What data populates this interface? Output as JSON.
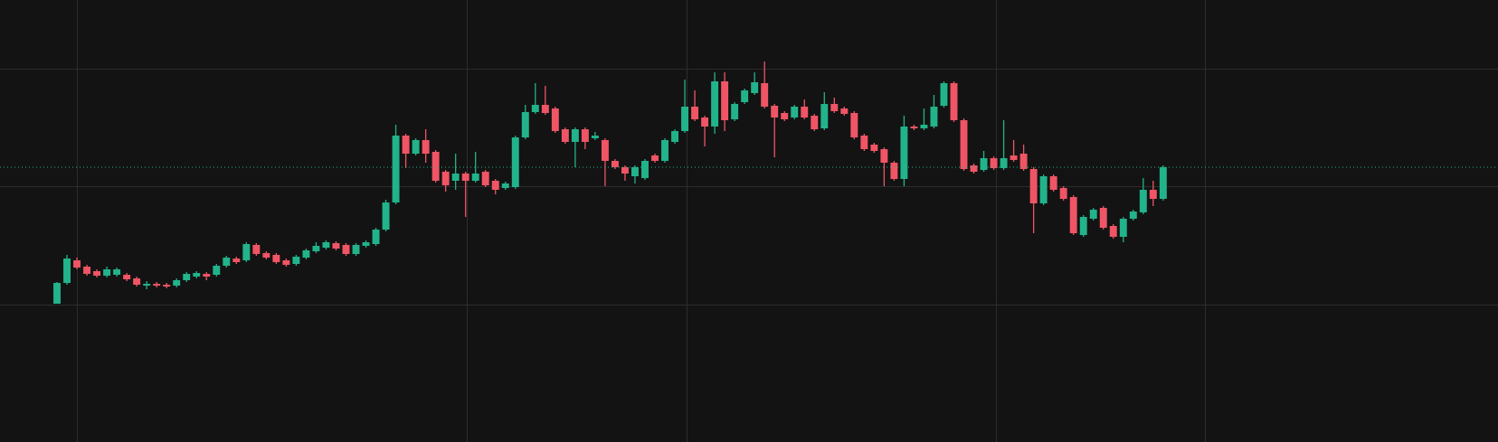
{
  "chart_data": {
    "type": "candlestick",
    "open": [
      153,
      176,
      201,
      194,
      189,
      184,
      185,
      185,
      181,
      173,
      175,
      174,
      173,
      179,
      183,
      186,
      185,
      195,
      203,
      201,
      218,
      209,
      207,
      201,
      197,
      204,
      211,
      215,
      220,
      218,
      208,
      217,
      219,
      235,
      265,
      339,
      319,
      334,
      321,
      299,
      289,
      297,
      289,
      299,
      289,
      281,
      282,
      337,
      365,
      373,
      369,
      346,
      332,
      346,
      336,
      334,
      311,
      304,
      294,
      292,
      317,
      311,
      332,
      344,
      371,
      359,
      349,
      399,
      357,
      376,
      386,
      397,
      372,
      364,
      359,
      371,
      361,
      347,
      374,
      369,
      364,
      339,
      329,
      324,
      309,
      291,
      349,
      347,
      349,
      372,
      397,
      356,
      306,
      301,
      314,
      303,
      317,
      319,
      302,
      264,
      294,
      281,
      271,
      229,
      247,
      259,
      239,
      227,
      247,
      254,
      279,
      269
    ],
    "high": [
      177,
      207,
      204,
      196,
      191,
      194,
      193,
      187,
      183,
      178,
      177,
      176,
      181,
      188,
      189,
      188,
      197,
      206,
      205,
      221,
      220,
      211,
      209,
      203,
      207,
      214,
      221,
      223,
      222,
      220,
      220,
      223,
      237,
      268,
      351,
      341,
      336,
      346,
      323,
      301,
      319,
      299,
      321,
      301,
      291,
      288,
      339,
      373,
      397,
      394,
      371,
      348,
      348,
      348,
      343,
      336,
      313,
      306,
      306,
      313,
      319,
      336,
      346,
      401,
      389,
      361,
      409,
      409,
      376,
      391,
      409,
      421,
      374,
      366,
      373,
      379,
      363,
      387,
      381,
      371,
      366,
      341,
      331,
      326,
      311,
      361,
      351,
      369,
      384,
      399,
      399,
      358,
      308,
      322,
      316,
      356,
      334,
      329,
      304,
      296,
      296,
      283,
      273,
      251,
      259,
      261,
      241,
      249,
      257,
      292,
      289,
      306
    ],
    "low": [
      153,
      174,
      191,
      184,
      182,
      182,
      183,
      178,
      172,
      169,
      171,
      170,
      171,
      177,
      181,
      179,
      183,
      193,
      197,
      199,
      206,
      202,
      197,
      194,
      195,
      202,
      209,
      213,
      212,
      206,
      206,
      215,
      217,
      233,
      263,
      303,
      317,
      309,
      287,
      277,
      279,
      249,
      287,
      282,
      274,
      279,
      280,
      335,
      363,
      362,
      342,
      330,
      304,
      324,
      334,
      283,
      302,
      289,
      286,
      290,
      309,
      309,
      330,
      342,
      355,
      327,
      341,
      344,
      355,
      374,
      384,
      369,
      315,
      355,
      357,
      357,
      344,
      345,
      364,
      361,
      335,
      322,
      320,
      283,
      289,
      283,
      345,
      345,
      347,
      370,
      354,
      300,
      297,
      299,
      301,
      301,
      310,
      300,
      231,
      262,
      277,
      267,
      229,
      227,
      245,
      235,
      225,
      221,
      245,
      252,
      261,
      267
    ],
    "close": [
      176,
      203,
      193,
      186,
      184,
      191,
      191,
      180,
      174,
      175,
      173,
      172,
      179,
      186,
      187,
      183,
      195,
      204,
      199,
      219,
      208,
      204,
      199,
      196,
      205,
      212,
      217,
      221,
      214,
      208,
      218,
      221,
      235,
      265,
      339,
      319,
      334,
      319,
      289,
      284,
      297,
      289,
      297,
      284,
      279,
      286,
      337,
      365,
      373,
      364,
      344,
      332,
      346,
      332,
      339,
      311,
      304,
      297,
      304,
      311,
      311,
      334,
      344,
      371,
      357,
      349,
      399,
      356,
      374,
      389,
      398,
      371,
      359,
      357,
      371,
      359,
      346,
      374,
      366,
      363,
      337,
      324,
      322,
      309,
      291,
      349,
      347,
      351,
      371,
      397,
      356,
      302,
      299,
      314,
      303,
      314,
      312,
      302,
      264,
      294,
      279,
      269,
      231,
      249,
      257,
      237,
      227,
      247,
      255,
      279,
      269,
      304
    ],
    "up_color": "#22b38a",
    "down_color": "#ef5565",
    "xlim": [
      -5.72,
      144.6
    ],
    "xticks": [
      2.0,
      41.1,
      63.2,
      94.2,
      115.2
    ],
    "ylim": [
      0,
      489
    ],
    "yticks": [
      152,
      283,
      413
    ],
    "grid": true,
    "price_line": {
      "value": 304,
      "color": "#22b38a"
    }
  }
}
